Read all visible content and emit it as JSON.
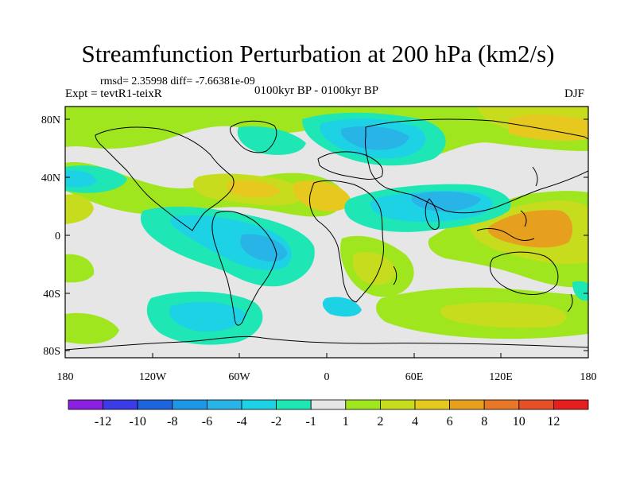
{
  "title": "Streamfunction Perturbation at 200 hPa (km2/s)",
  "stats": "rmsd= 2.35998 diff= -7.66381e-09",
  "experiment": "Expt = tevtR1-teixR",
  "period": "0100kyr BP - 0100kyr BP",
  "season": "DJF",
  "lat_labels": [
    "80N",
    "40N",
    "0",
    "40S",
    "80S"
  ],
  "lon_labels": [
    "180",
    "120W",
    "60W",
    "0",
    "60E",
    "120E",
    "180"
  ],
  "colorbar": {
    "labels": [
      "-12",
      "-10",
      "-8",
      "-6",
      "-4",
      "-2",
      "-1",
      "1",
      "2",
      "4",
      "6",
      "8",
      "10",
      "12"
    ],
    "colors": [
      "#8c20e0",
      "#3c3ce6",
      "#1e64dc",
      "#1e96e6",
      "#28b4e6",
      "#1ed2e6",
      "#1ee6b4",
      "#e6e6e6",
      "#a0e61e",
      "#c8dc1e",
      "#e6c81e",
      "#e6a01e",
      "#e67828",
      "#e65028",
      "#e61e1e"
    ]
  }
}
